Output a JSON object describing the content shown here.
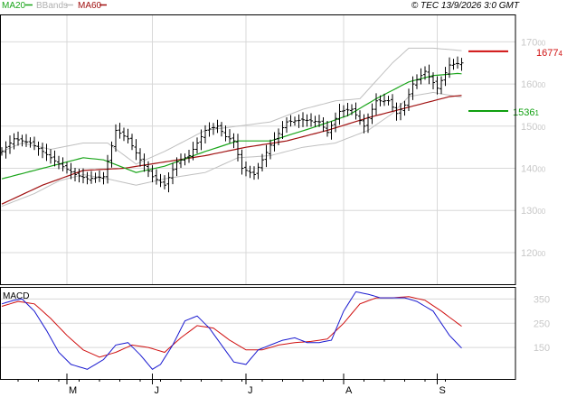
{
  "header": {
    "legend": [
      {
        "label": "MA20",
        "color": "#1aa51a"
      },
      {
        "label": "BBands",
        "color": "#c0c0c0"
      },
      {
        "label": "MA60",
        "color": "#a01010"
      }
    ],
    "copyright": "© TEC 13/9/2026 3:0 GMT"
  },
  "colors": {
    "price": "#000000",
    "ma20": "#1aa51a",
    "bbands": "#c0c0c0",
    "ma60": "#a01010",
    "macd": "#1a1ad0",
    "signal": "#d01010",
    "grid": "#d8d8d8",
    "resistance": "#d01010",
    "support": "#10a010"
  },
  "chart_data": [
    {
      "type": "line",
      "panel": "price",
      "grid": true,
      "x_axis": {
        "ticks": [
          "M",
          "J",
          "J",
          "A",
          "S"
        ]
      },
      "y_axis": {
        "ticks": [
          1200,
          1300,
          1400,
          1500,
          1600,
          1700
        ],
        "tick_labels": [
          "120|00",
          "130|00",
          "140|00",
          "150|00",
          "160|00",
          "170|00"
        ],
        "range": [
          1125,
          1765
        ]
      },
      "levels": [
        {
          "name": "resistance",
          "value": 1677.4,
          "label": "1677|4"
        },
        {
          "name": "support",
          "value": 1536.1,
          "label": "1536|1"
        }
      ],
      "n_bars": 114,
      "close_keys": [
        [
          0,
          1440
        ],
        [
          3,
          1470
        ],
        [
          7,
          1460
        ],
        [
          10,
          1440
        ],
        [
          14,
          1410
        ],
        [
          18,
          1385
        ],
        [
          21,
          1375
        ],
        [
          25,
          1380
        ],
        [
          28,
          1490
        ],
        [
          31,
          1470
        ],
        [
          34,
          1420
        ],
        [
          37,
          1380
        ],
        [
          40,
          1360
        ],
        [
          43,
          1415
        ],
        [
          46,
          1430
        ],
        [
          50,
          1490
        ],
        [
          53,
          1500
        ],
        [
          55,
          1475
        ],
        [
          57,
          1465
        ],
        [
          59,
          1400
        ],
        [
          62,
          1385
        ],
        [
          66,
          1455
        ],
        [
          70,
          1510
        ],
        [
          74,
          1515
        ],
        [
          78,
          1510
        ],
        [
          80,
          1485
        ],
        [
          83,
          1535
        ],
        [
          86,
          1540
        ],
        [
          89,
          1500
        ],
        [
          92,
          1560
        ],
        [
          95,
          1560
        ],
        [
          97,
          1530
        ],
        [
          99,
          1550
        ],
        [
          101,
          1600
        ],
        [
          104,
          1630
        ],
        [
          107,
          1590
        ],
        [
          110,
          1645
        ],
        [
          113,
          1650
        ],
        [
          116,
          1640
        ],
        [
          119,
          1610
        ],
        [
          122,
          1595
        ],
        [
          125,
          1605
        ],
        [
          127,
          1600
        ]
      ],
      "ma20_keys": [
        [
          0,
          1375
        ],
        [
          10,
          1400
        ],
        [
          20,
          1425
        ],
        [
          25,
          1420
        ],
        [
          33,
          1390
        ],
        [
          40,
          1405
        ],
        [
          50,
          1440
        ],
        [
          58,
          1465
        ],
        [
          66,
          1465
        ],
        [
          76,
          1495
        ],
        [
          85,
          1525
        ],
        [
          92,
          1565
        ],
        [
          100,
          1605
        ],
        [
          106,
          1620
        ],
        [
          112,
          1625
        ],
        [
          118,
          1620
        ]
      ],
      "ma60_keys": [
        [
          0,
          1315
        ],
        [
          10,
          1360
        ],
        [
          20,
          1395
        ],
        [
          30,
          1400
        ],
        [
          40,
          1415
        ],
        [
          50,
          1430
        ],
        [
          60,
          1450
        ],
        [
          70,
          1465
        ],
        [
          80,
          1490
        ],
        [
          90,
          1520
        ],
        [
          100,
          1545
        ],
        [
          110,
          1570
        ],
        [
          118,
          1578
        ]
      ],
      "bb_upper_keys": [
        [
          0,
          1440
        ],
        [
          5,
          1460
        ],
        [
          12,
          1445
        ],
        [
          20,
          1460
        ],
        [
          26,
          1460
        ],
        [
          33,
          1410
        ],
        [
          40,
          1440
        ],
        [
          50,
          1490
        ],
        [
          58,
          1500
        ],
        [
          66,
          1510
        ],
        [
          74,
          1540
        ],
        [
          82,
          1560
        ],
        [
          88,
          1565
        ],
        [
          96,
          1650
        ],
        [
          100,
          1685
        ],
        [
          106,
          1685
        ],
        [
          112,
          1680
        ],
        [
          118,
          1675
        ]
      ],
      "bb_lower_keys": [
        [
          0,
          1310
        ],
        [
          8,
          1340
        ],
        [
          14,
          1370
        ],
        [
          20,
          1385
        ],
        [
          26,
          1375
        ],
        [
          33,
          1360
        ],
        [
          40,
          1375
        ],
        [
          50,
          1390
        ],
        [
          58,
          1425
        ],
        [
          66,
          1430
        ],
        [
          74,
          1450
        ],
        [
          82,
          1460
        ],
        [
          90,
          1490
        ],
        [
          96,
          1530
        ],
        [
          100,
          1570
        ],
        [
          106,
          1580
        ],
        [
          112,
          1570
        ],
        [
          118,
          1565
        ]
      ]
    },
    {
      "type": "line",
      "panel": "macd",
      "title": "MACD",
      "y_axis": {
        "ticks": [
          150,
          250,
          350
        ],
        "tick_labels": [
          "150",
          "250",
          "350"
        ],
        "range": [
          20,
          400
        ]
      },
      "macd_keys": [
        [
          0,
          330
        ],
        [
          3,
          345
        ],
        [
          5,
          350
        ],
        [
          8,
          300
        ],
        [
          11,
          220
        ],
        [
          14,
          130
        ],
        [
          17,
          80
        ],
        [
          21,
          60
        ],
        [
          25,
          100
        ],
        [
          28,
          160
        ],
        [
          31,
          170
        ],
        [
          34,
          120
        ],
        [
          37,
          60
        ],
        [
          39,
          80
        ],
        [
          42,
          160
        ],
        [
          45,
          260
        ],
        [
          48,
          280
        ],
        [
          51,
          230
        ],
        [
          54,
          160
        ],
        [
          57,
          90
        ],
        [
          60,
          80
        ],
        [
          63,
          140
        ],
        [
          66,
          160
        ],
        [
          69,
          180
        ],
        [
          72,
          190
        ],
        [
          75,
          170
        ],
        [
          78,
          170
        ],
        [
          81,
          180
        ],
        [
          84,
          300
        ],
        [
          87,
          380
        ],
        [
          90,
          370
        ],
        [
          93,
          355
        ],
        [
          96,
          355
        ],
        [
          99,
          355
        ],
        [
          102,
          340
        ],
        [
          106,
          300
        ],
        [
          110,
          200
        ],
        [
          114,
          130
        ],
        [
          118,
          100
        ]
      ],
      "signal_keys": [
        [
          0,
          320
        ],
        [
          4,
          340
        ],
        [
          8,
          330
        ],
        [
          12,
          270
        ],
        [
          16,
          200
        ],
        [
          20,
          140
        ],
        [
          24,
          110
        ],
        [
          28,
          130
        ],
        [
          32,
          160
        ],
        [
          36,
          150
        ],
        [
          40,
          130
        ],
        [
          44,
          190
        ],
        [
          48,
          240
        ],
        [
          52,
          230
        ],
        [
          56,
          180
        ],
        [
          60,
          140
        ],
        [
          64,
          140
        ],
        [
          68,
          160
        ],
        [
          72,
          170
        ],
        [
          76,
          175
        ],
        [
          80,
          185
        ],
        [
          84,
          250
        ],
        [
          88,
          330
        ],
        [
          92,
          355
        ],
        [
          96,
          355
        ],
        [
          100,
          360
        ],
        [
          104,
          345
        ],
        [
          108,
          300
        ],
        [
          112,
          250
        ],
        [
          116,
          200
        ],
        [
          118,
          180
        ]
      ]
    }
  ]
}
